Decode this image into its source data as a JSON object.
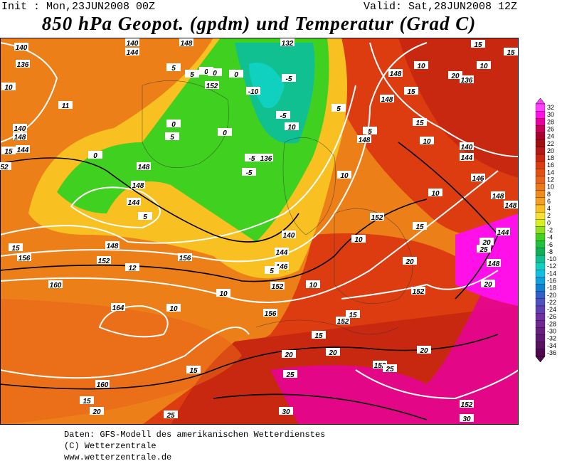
{
  "header": {
    "init": "Init : Mon,23JUN2008 00Z",
    "valid": "Valid: Sat,28JUN2008 12Z",
    "title": "850 hPa Geopot. (gpdm) und Temperatur (Grad C)"
  },
  "map": {
    "contour_labels": [
      "140",
      "136",
      "10",
      "11",
      "140",
      "148",
      "144",
      "15",
      "52",
      "140",
      "144",
      "148",
      "5",
      "5",
      "0",
      "0",
      "152",
      "132",
      "-5",
      "-10",
      "-5",
      "0",
      "5",
      "0",
      "0",
      "5",
      "5",
      "148",
      "136",
      "-5",
      "-5",
      "0",
      "148",
      "148",
      "144",
      "5",
      "15",
      "156",
      "148",
      "152",
      "156",
      "12",
      "160",
      "164",
      "10",
      "10",
      "152",
      "10",
      "140",
      "144",
      "146",
      "5",
      "152",
      "10",
      "15",
      "156",
      "152",
      "15",
      "15",
      "10",
      "10",
      "146",
      "148",
      "144",
      "148",
      "20",
      "25",
      "15",
      "15",
      "10",
      "148",
      "148",
      "20",
      "136",
      "10",
      "15",
      "15",
      "140",
      "144",
      "20",
      "152",
      "148",
      "20",
      "20",
      "20",
      "20",
      "152",
      "25",
      "25",
      "15",
      "160",
      "15",
      "20",
      "25",
      "30",
      "152",
      "30",
      "10",
      "10"
    ]
  },
  "colorbar": {
    "labels": [
      32,
      30,
      28,
      26,
      24,
      22,
      20,
      18,
      16,
      14,
      12,
      10,
      8,
      6,
      4,
      2,
      0,
      -2,
      -4,
      -6,
      -8,
      -10,
      -12,
      -14,
      -16,
      -18,
      -20,
      -22,
      -24,
      -26,
      -28,
      -30,
      -32,
      -34,
      -36
    ],
    "colors": [
      "#ff40ff",
      "#ff10e8",
      "#e8009c",
      "#c8005a",
      "#a8002a",
      "#a01010",
      "#b41818",
      "#c82810",
      "#dc3c10",
      "#e45010",
      "#e86418",
      "#ec7818",
      "#f08c1c",
      "#f4a020",
      "#f8c020",
      "#f8e030",
      "#d8f020",
      "#90e020",
      "#40d020",
      "#20c040",
      "#10b058",
      "#10c090",
      "#10d0c0",
      "#10c0e0",
      "#10a0e0",
      "#1080d0",
      "#3060c8",
      "#5050c0",
      "#6040b0",
      "#7030a0",
      "#702890",
      "#682080",
      "#601870",
      "#581060",
      "#500850"
    ]
  },
  "footer": [
    "Daten: GFS-Modell des amerikanischen Wetterdienstes",
    "(C) Wetterzentrale",
    "www.wetterzentrale.de"
  ]
}
